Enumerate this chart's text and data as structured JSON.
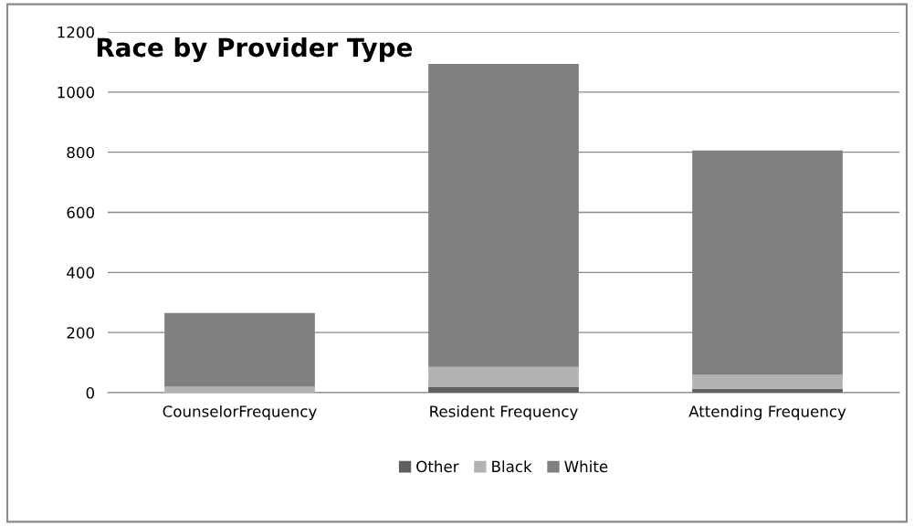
{
  "chart_data": {
    "type": "bar",
    "title": "Race by Provider Type",
    "stacked": true,
    "categories": [
      "CounselorFrequency",
      "Resident Frequency",
      "Attending Frequency"
    ],
    "series": [
      {
        "name": "Other",
        "color": "#606060",
        "values": [
          null,
          20,
          13
        ]
      },
      {
        "name": "Black",
        "color": "#b2b2b2",
        "values": [
          20,
          66,
          46
        ]
      },
      {
        "name": "White",
        "color": "#808080",
        "values": [
          245,
          1008,
          747
        ]
      }
    ],
    "ylim": [
      0,
      1200
    ],
    "yticks": [
      0,
      200,
      400,
      600,
      800,
      1000,
      1200
    ],
    "grid": "y",
    "legend": "bottom"
  }
}
